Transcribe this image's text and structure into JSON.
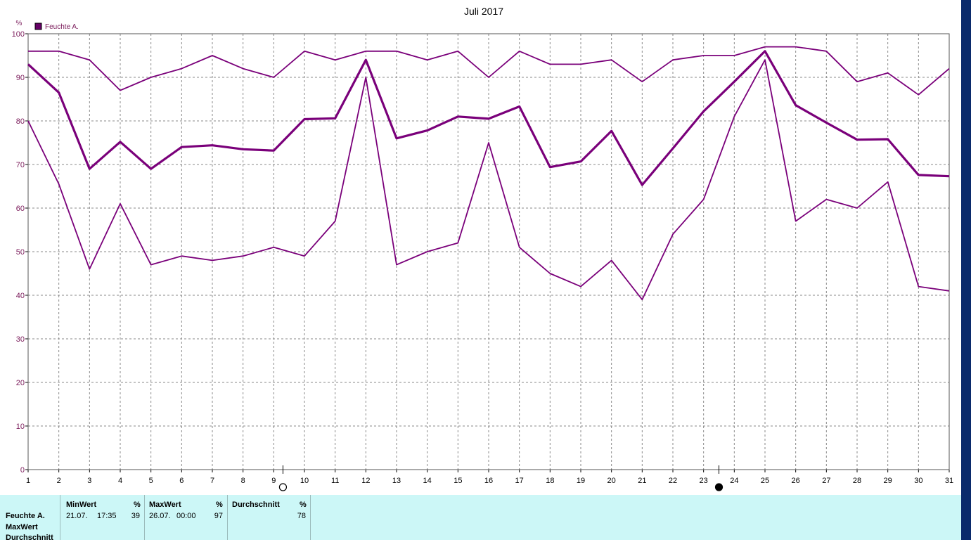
{
  "chart_data": {
    "type": "line",
    "title": "Juli 2017",
    "ylabel": "%",
    "legend": "Feuchte A.",
    "legend_color": "#660066",
    "line_color": "#7a007a",
    "ylim": [
      0,
      100
    ],
    "yticks": [
      0,
      10,
      20,
      30,
      40,
      50,
      60,
      70,
      80,
      90,
      100
    ],
    "x": [
      1,
      2,
      3,
      4,
      5,
      6,
      7,
      8,
      9,
      10,
      11,
      12,
      13,
      14,
      15,
      16,
      17,
      18,
      19,
      20,
      21,
      22,
      23,
      24,
      25,
      26,
      27,
      28,
      29,
      30,
      31
    ],
    "series": [
      {
        "name": "MaxWert",
        "values": [
          96,
          96,
          94,
          87,
          90,
          92,
          95,
          92,
          90,
          96,
          94,
          96,
          96,
          94,
          96,
          90,
          96,
          93,
          93,
          94,
          89,
          94,
          95,
          95,
          97,
          97,
          96,
          89,
          91,
          86,
          92
        ]
      },
      {
        "name": "Durchschnitt",
        "values": [
          93,
          86.5,
          69,
          75.2,
          69,
          74,
          74.4,
          73.5,
          73.2,
          80.4,
          80.6,
          94,
          76,
          77.8,
          81,
          80.5,
          83.3,
          69.4,
          70.7,
          77.7,
          65.3,
          73.7,
          82.2,
          89,
          96,
          83.6,
          79.6,
          75.7,
          75.8,
          67.6,
          67.3
        ]
      },
      {
        "name": "MinWert",
        "values": [
          80,
          65.5,
          46,
          61,
          47,
          49,
          48,
          49,
          51,
          49,
          57,
          90,
          47,
          50,
          52,
          75,
          51,
          45,
          42,
          48,
          39,
          54,
          62,
          81,
          94,
          57,
          62,
          60,
          66,
          42,
          41
        ]
      }
    ],
    "moon_markers": [
      {
        "phase": "full",
        "day": 9.3
      },
      {
        "phase": "new",
        "day": 23.5
      }
    ]
  },
  "panel": {
    "row_label": "Feuchte A.",
    "rows": [
      "MaxWert",
      "Durchschnitt"
    ],
    "columns": [
      {
        "header": "MinWert",
        "unit": "%",
        "date": "21.07.",
        "time": "17:35",
        "value": "39"
      },
      {
        "header": "MaxWert",
        "unit": "%",
        "date": "26.07.",
        "time": "00:00",
        "value": "97"
      },
      {
        "header": "Durchschnitt",
        "unit": "%",
        "value": "78"
      }
    ]
  }
}
